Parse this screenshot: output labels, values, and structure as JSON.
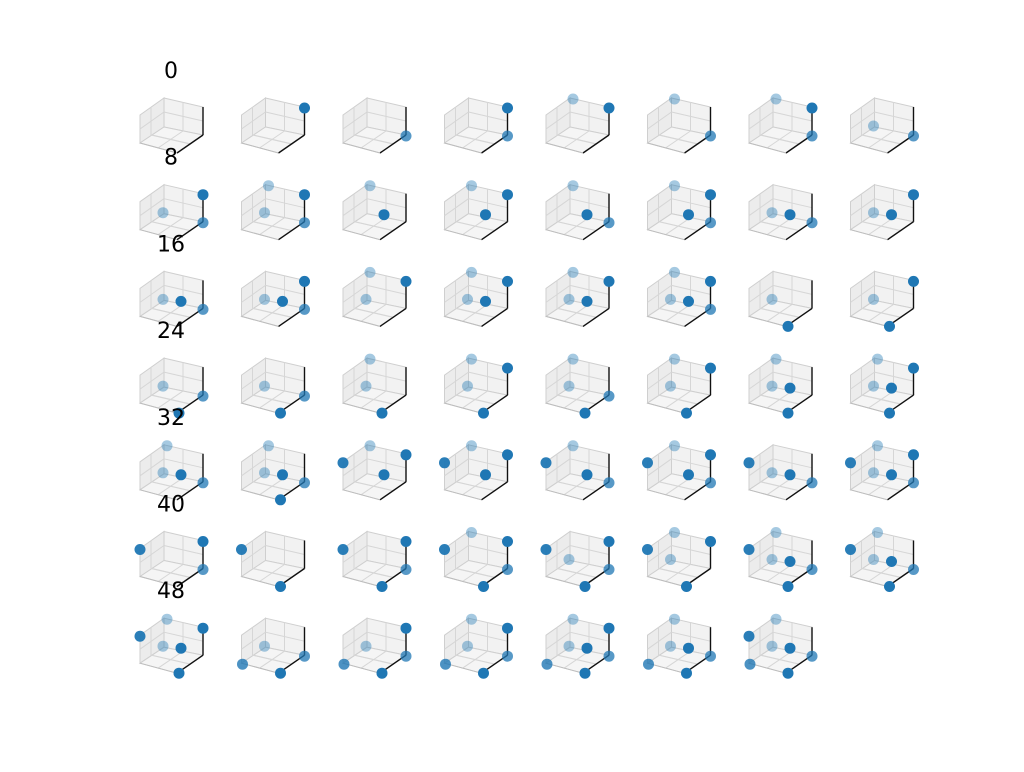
{
  "chart_data": {
    "type": "scatter",
    "projection": "3d",
    "grid": true,
    "subplot_grid": {
      "rows": 7,
      "cols": 8
    },
    "panel_count": 55,
    "marker_color": "#1f77b4",
    "pane_color": "#f2f2f2",
    "row_labels": [
      "0",
      "8",
      "16",
      "24",
      "32",
      "40",
      "48"
    ],
    "panels": [
      {
        "index": 0,
        "points": []
      },
      {
        "index": 1,
        "points": [
          [
            1,
            0,
            1
          ]
        ]
      },
      {
        "index": 2,
        "points": [
          [
            1,
            0,
            0
          ]
        ]
      },
      {
        "index": 3,
        "points": [
          [
            1,
            0,
            1
          ],
          [
            1,
            0,
            0
          ]
        ]
      },
      {
        "index": 4,
        "points": [
          [
            0,
            1,
            1
          ],
          [
            1,
            0,
            1
          ]
        ]
      },
      {
        "index": 5,
        "points": [
          [
            0,
            1,
            1
          ],
          [
            1,
            0,
            0
          ]
        ]
      },
      {
        "index": 6,
        "points": [
          [
            0,
            1,
            1
          ],
          [
            1,
            0,
            1
          ],
          [
            1,
            0,
            0
          ]
        ]
      },
      {
        "index": 7,
        "points": [
          [
            0,
            0,
            0
          ],
          [
            1,
            0,
            0
          ]
        ]
      },
      {
        "index": 8,
        "points": [
          [
            0,
            0,
            0
          ],
          [
            1,
            0,
            1
          ],
          [
            1,
            0,
            0
          ]
        ]
      },
      {
        "index": 9,
        "points": [
          [
            0,
            1,
            1
          ],
          [
            0,
            0,
            0
          ],
          [
            1,
            0,
            1
          ],
          [
            1,
            0,
            0
          ]
        ]
      },
      {
        "index": 10,
        "points": [
          [
            0,
            1,
            1
          ],
          [
            1,
            1,
            0
          ]
        ]
      },
      {
        "index": 11,
        "points": [
          [
            0,
            1,
            1
          ],
          [
            1,
            1,
            0
          ],
          [
            1,
            0,
            1
          ]
        ]
      },
      {
        "index": 12,
        "points": [
          [
            0,
            1,
            1
          ],
          [
            1,
            1,
            0
          ],
          [
            1,
            0,
            0
          ]
        ]
      },
      {
        "index": 13,
        "points": [
          [
            0,
            1,
            1
          ],
          [
            1,
            1,
            0
          ],
          [
            1,
            0,
            1
          ],
          [
            1,
            0,
            0
          ]
        ]
      },
      {
        "index": 14,
        "points": [
          [
            0,
            0,
            0
          ],
          [
            1,
            1,
            0
          ],
          [
            1,
            0,
            0
          ]
        ]
      },
      {
        "index": 15,
        "points": [
          [
            0,
            0,
            0
          ],
          [
            1,
            1,
            0
          ],
          [
            1,
            0,
            1
          ]
        ]
      },
      {
        "index": 16,
        "points": [
          [
            0,
            0,
            0
          ],
          [
            1,
            1,
            0
          ],
          [
            1,
            0,
            0
          ]
        ]
      },
      {
        "index": 17,
        "points": [
          [
            0,
            0,
            0
          ],
          [
            1,
            1,
            0
          ],
          [
            1,
            0,
            1
          ],
          [
            1,
            0,
            0
          ]
        ]
      },
      {
        "index": 18,
        "points": [
          [
            0,
            1,
            1
          ],
          [
            0,
            0,
            0
          ],
          [
            1,
            0,
            1
          ]
        ]
      },
      {
        "index": 19,
        "points": [
          [
            0,
            1,
            1
          ],
          [
            0,
            0,
            0
          ],
          [
            1,
            1,
            0
          ],
          [
            1,
            0,
            1
          ]
        ]
      },
      {
        "index": 20,
        "points": [
          [
            0,
            1,
            1
          ],
          [
            0,
            0,
            0
          ],
          [
            1,
            1,
            0
          ],
          [
            1,
            0,
            1
          ]
        ]
      },
      {
        "index": 21,
        "points": [
          [
            0,
            1,
            1
          ],
          [
            0,
            0,
            0
          ],
          [
            1,
            1,
            0
          ],
          [
            1,
            0,
            1
          ],
          [
            1,
            0,
            0
          ]
        ]
      },
      {
        "index": 22,
        "points": [
          [
            0,
            0,
            0
          ],
          [
            1,
            0,
            -1
          ]
        ]
      },
      {
        "index": 23,
        "points": [
          [
            0,
            0,
            0
          ],
          [
            1,
            0,
            1
          ],
          [
            1,
            0,
            -1
          ]
        ]
      },
      {
        "index": 24,
        "points": [
          [
            0,
            0,
            0
          ],
          [
            1,
            0,
            0
          ],
          [
            1,
            0,
            -1
          ]
        ]
      },
      {
        "index": 25,
        "points": [
          [
            0,
            0,
            0
          ],
          [
            1,
            0,
            0
          ],
          [
            1,
            0,
            -1
          ]
        ]
      },
      {
        "index": 26,
        "points": [
          [
            0,
            1,
            1
          ],
          [
            0,
            0,
            0
          ],
          [
            1,
            0,
            -1
          ]
        ]
      },
      {
        "index": 27,
        "points": [
          [
            0,
            1,
            1
          ],
          [
            0,
            0,
            0
          ],
          [
            1,
            0,
            1
          ],
          [
            1,
            0,
            -1
          ]
        ]
      },
      {
        "index": 28,
        "points": [
          [
            0,
            1,
            1
          ],
          [
            0,
            0,
            0
          ],
          [
            1,
            0,
            0
          ],
          [
            1,
            0,
            -1
          ]
        ]
      },
      {
        "index": 29,
        "points": [
          [
            0,
            1,
            1
          ],
          [
            0,
            0,
            0
          ],
          [
            1,
            0,
            1
          ],
          [
            1,
            0,
            -1
          ]
        ]
      },
      {
        "index": 30,
        "points": [
          [
            0,
            1,
            1
          ],
          [
            0,
            0,
            0
          ],
          [
            1,
            1,
            0
          ],
          [
            1,
            0,
            -1
          ]
        ]
      },
      {
        "index": 31,
        "points": [
          [
            0,
            1,
            1
          ],
          [
            0,
            0,
            0
          ],
          [
            1,
            1,
            0
          ],
          [
            1,
            0,
            1
          ],
          [
            1,
            0,
            -1
          ]
        ]
      },
      {
        "index": 32,
        "points": [
          [
            0,
            1,
            1
          ],
          [
            0,
            0,
            0
          ],
          [
            1,
            1,
            0
          ],
          [
            1,
            0,
            0
          ]
        ]
      },
      {
        "index": 33,
        "points": [
          [
            0,
            1,
            1
          ],
          [
            0,
            0,
            0
          ],
          [
            1,
            1,
            0
          ],
          [
            1,
            0,
            0
          ],
          [
            1,
            0,
            -1
          ]
        ]
      },
      {
        "index": 34,
        "points": [
          [
            0,
            1,
            1
          ],
          [
            -1,
            0,
            0
          ],
          [
            1,
            1,
            0
          ],
          [
            1,
            0,
            1
          ]
        ]
      },
      {
        "index": 35,
        "points": [
          [
            0,
            1,
            1
          ],
          [
            -1,
            0,
            0
          ],
          [
            1,
            1,
            0
          ],
          [
            1,
            0,
            1
          ]
        ]
      },
      {
        "index": 36,
        "points": [
          [
            0,
            1,
            1
          ],
          [
            -1,
            0,
            0
          ],
          [
            1,
            1,
            0
          ],
          [
            1,
            0,
            0
          ]
        ]
      },
      {
        "index": 37,
        "points": [
          [
            0,
            1,
            1
          ],
          [
            -1,
            0,
            0
          ],
          [
            1,
            1,
            0
          ],
          [
            1,
            0,
            1
          ],
          [
            1,
            0,
            0
          ]
        ]
      },
      {
        "index": 38,
        "points": [
          [
            -1,
            0,
            0
          ],
          [
            0,
            0,
            0
          ],
          [
            1,
            1,
            0
          ],
          [
            1,
            0,
            0
          ]
        ]
      },
      {
        "index": 39,
        "points": [
          [
            0,
            1,
            1
          ],
          [
            -1,
            0,
            0
          ],
          [
            0,
            0,
            0
          ],
          [
            1,
            1,
            0
          ],
          [
            1,
            0,
            1
          ],
          [
            1,
            0,
            0
          ]
        ]
      },
      {
        "index": 40,
        "points": [
          [
            -1,
            0,
            0
          ],
          [
            1,
            0,
            1
          ],
          [
            1,
            0,
            0
          ]
        ]
      },
      {
        "index": 41,
        "points": [
          [
            -1,
            0,
            0
          ],
          [
            1,
            0,
            -1
          ]
        ]
      },
      {
        "index": 42,
        "points": [
          [
            -1,
            0,
            0
          ],
          [
            1,
            0,
            1
          ],
          [
            1,
            0,
            0
          ],
          [
            1,
            0,
            -1
          ]
        ]
      },
      {
        "index": 43,
        "points": [
          [
            0,
            1,
            1
          ],
          [
            -1,
            0,
            0
          ],
          [
            1,
            0,
            1
          ],
          [
            1,
            0,
            0
          ],
          [
            1,
            0,
            -1
          ]
        ]
      },
      {
        "index": 44,
        "points": [
          [
            -1,
            0,
            0
          ],
          [
            0,
            0,
            0
          ],
          [
            1,
            0,
            1
          ],
          [
            1,
            0,
            0
          ],
          [
            1,
            0,
            -1
          ]
        ]
      },
      {
        "index": 45,
        "points": [
          [
            0,
            1,
            1
          ],
          [
            -1,
            0,
            0
          ],
          [
            0,
            0,
            0
          ],
          [
            1,
            0,
            1
          ],
          [
            1,
            0,
            -1
          ]
        ]
      },
      {
        "index": 46,
        "points": [
          [
            0,
            1,
            1
          ],
          [
            -1,
            0,
            0
          ],
          [
            0,
            0,
            0
          ],
          [
            1,
            1,
            0
          ],
          [
            1,
            0,
            0
          ],
          [
            1,
            0,
            -1
          ]
        ]
      },
      {
        "index": 47,
        "points": [
          [
            0,
            1,
            1
          ],
          [
            -1,
            0,
            0
          ],
          [
            0,
            0,
            0
          ],
          [
            1,
            1,
            0
          ],
          [
            1,
            0,
            0
          ],
          [
            1,
            0,
            -1
          ]
        ]
      },
      {
        "index": 48,
        "points": [
          [
            0,
            1,
            1
          ],
          [
            -1,
            0,
            0
          ],
          [
            0,
            0,
            0
          ],
          [
            1,
            1,
            0
          ],
          [
            1,
            0,
            1
          ],
          [
            1,
            0,
            -1
          ]
        ]
      },
      {
        "index": 49,
        "points": [
          [
            -1,
            0,
            -1
          ],
          [
            0,
            0,
            0
          ],
          [
            1,
            0,
            0
          ],
          [
            1,
            0,
            -1
          ]
        ]
      },
      {
        "index": 50,
        "points": [
          [
            -1,
            0,
            -1
          ],
          [
            0,
            0,
            0
          ],
          [
            1,
            0,
            1
          ],
          [
            1,
            0,
            0
          ],
          [
            1,
            0,
            -1
          ]
        ]
      },
      {
        "index": 51,
        "points": [
          [
            -1,
            0,
            -1
          ],
          [
            0,
            1,
            1
          ],
          [
            0,
            0,
            0
          ],
          [
            1,
            0,
            1
          ],
          [
            1,
            0,
            0
          ],
          [
            1,
            0,
            -1
          ]
        ]
      },
      {
        "index": 52,
        "points": [
          [
            -1,
            0,
            -1
          ],
          [
            0,
            1,
            1
          ],
          [
            0,
            0,
            0
          ],
          [
            1,
            1,
            0
          ],
          [
            1,
            0,
            1
          ],
          [
            1,
            0,
            0
          ],
          [
            1,
            0,
            -1
          ]
        ]
      },
      {
        "index": 53,
        "points": [
          [
            -1,
            0,
            -1
          ],
          [
            0,
            1,
            1
          ],
          [
            0,
            0,
            0
          ],
          [
            1,
            1,
            0
          ],
          [
            1,
            0,
            0
          ],
          [
            1,
            0,
            -1
          ]
        ]
      },
      {
        "index": 54,
        "points": [
          [
            -1,
            0,
            -1
          ],
          [
            0,
            1,
            1
          ],
          [
            -1,
            0,
            0
          ],
          [
            0,
            0,
            0
          ],
          [
            1,
            1,
            0
          ],
          [
            1,
            0,
            0
          ],
          [
            1,
            0,
            -1
          ]
        ]
      }
    ]
  }
}
